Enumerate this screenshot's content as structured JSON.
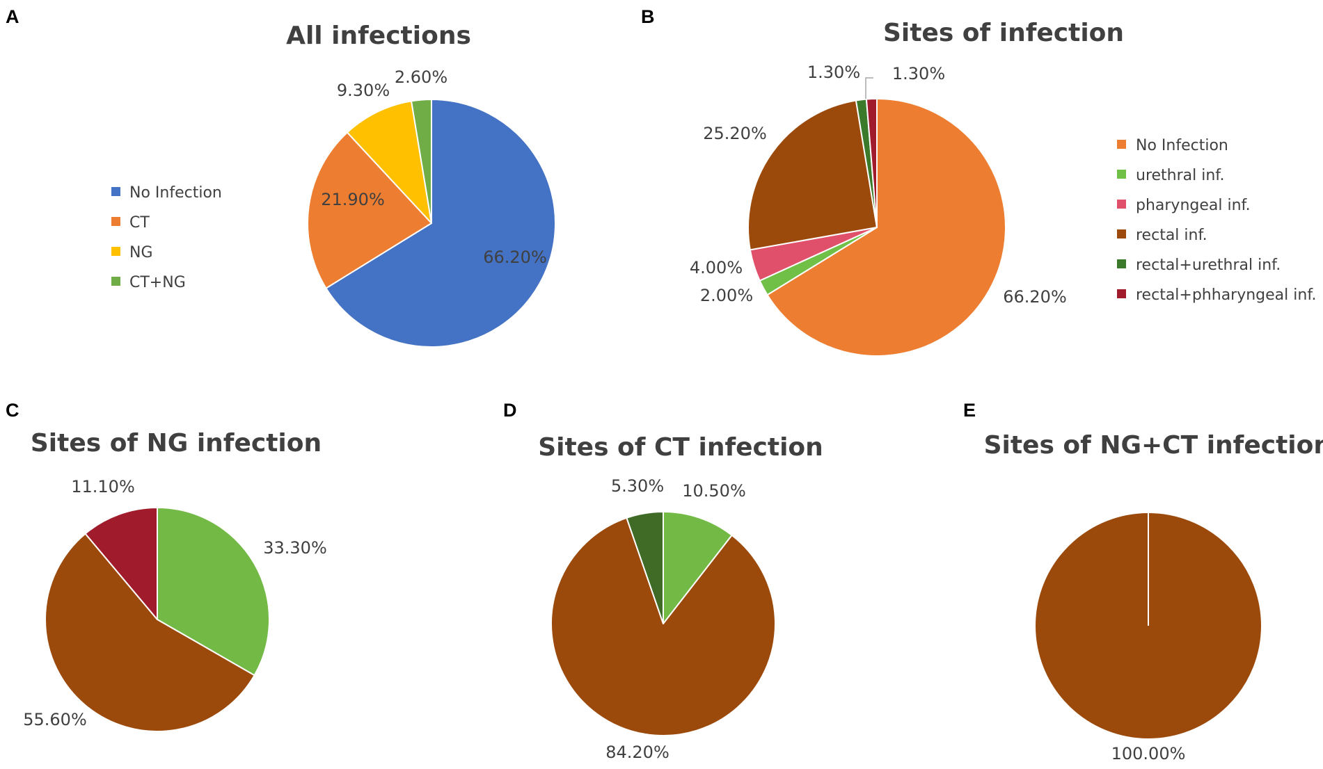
{
  "chart_data": [
    {
      "panel": "A",
      "type": "pie",
      "title": "All infections",
      "legend": "left",
      "slices": [
        {
          "label": "No Infection",
          "value": 66.2,
          "text": "66.20%",
          "color": "#4472C4"
        },
        {
          "label": "CT",
          "value": 21.9,
          "text": "21.90%",
          "color": "#ED7D31"
        },
        {
          "label": "NG",
          "value": 9.3,
          "text": "9.30%",
          "color": "#FFC000"
        },
        {
          "label": "CT+NG",
          "value": 2.6,
          "text": "2.60%",
          "color": "#70AD47"
        }
      ]
    },
    {
      "panel": "B",
      "type": "pie",
      "title": "Sites of infection",
      "legend": "right",
      "slices": [
        {
          "label": "No Infection",
          "value": 66.2,
          "text": "66.20%",
          "color": "#ED7D31"
        },
        {
          "label": "urethral inf.",
          "value": 2.0,
          "text": "2.00%",
          "color": "#70C047"
        },
        {
          "label": "pharyngeal inf.",
          "value": 4.0,
          "text": "4.00%",
          "color": "#E0506A"
        },
        {
          "label": "rectal inf.",
          "value": 25.2,
          "text": "25.20%",
          "color": "#9C4A0C"
        },
        {
          "label": "rectal+urethral inf.",
          "value": 1.3,
          "text": "1.30%",
          "color": "#3A7A2A"
        },
        {
          "label": "rectal+phharyngeal inf.",
          "value": 1.3,
          "text": "1.30%",
          "color": "#A01C2C"
        }
      ]
    },
    {
      "panel": "C",
      "type": "pie",
      "title": "Sites of NG infection",
      "legend": "none",
      "slices": [
        {
          "value": 33.3,
          "text": "33.30%",
          "color": "#72BA45"
        },
        {
          "value": 55.6,
          "text": "55.60%",
          "color": "#9C4A0C"
        },
        {
          "value": 11.1,
          "text": "11.10%",
          "color": "#A01C2C"
        }
      ]
    },
    {
      "panel": "D",
      "type": "pie",
      "title": "Sites of CT infection",
      "legend": "none",
      "slices": [
        {
          "value": 10.5,
          "text": "10.50%",
          "color": "#72BA45"
        },
        {
          "value": 84.2,
          "text": "84.20%",
          "color": "#9C4A0C"
        },
        {
          "value": 5.3,
          "text": "5.30%",
          "color": "#3F6B27"
        }
      ]
    },
    {
      "panel": "E",
      "type": "pie",
      "title": "Sites of NG+CT infections",
      "legend": "none",
      "slices": [
        {
          "value": 100.0,
          "text": "100.00%",
          "color": "#9C4A0C"
        }
      ]
    }
  ]
}
